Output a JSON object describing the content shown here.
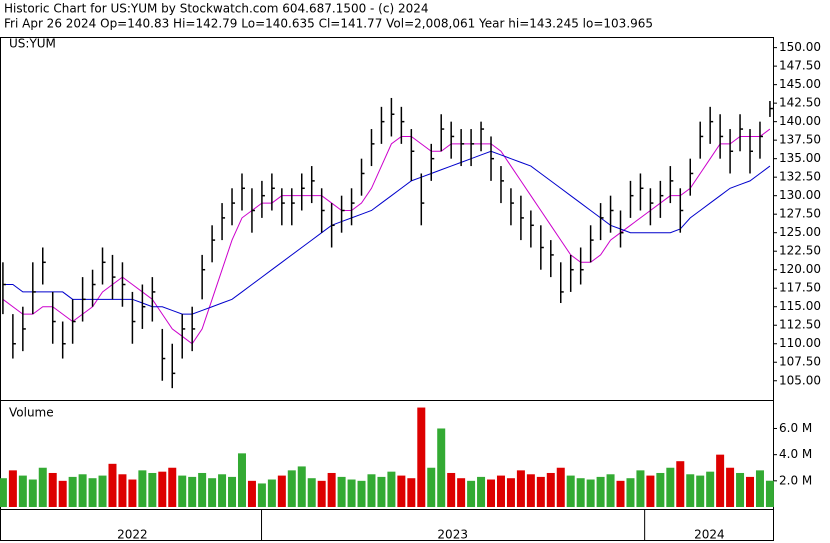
{
  "chart_data": [
    {
      "type": "ohlc",
      "title": "Historic Chart for US:YUM by Stockwatch.com 604.687.1500 - (c) 2024",
      "subtitle": "Fri Apr 26 2024   Op=140.83   Hi=142.79   Lo=140.635   Cl=141.77   Vol=2,008,061   Year hi=143.245   lo=103.965",
      "symbol_label": "US:YUM",
      "bar_color": "#000000",
      "xlim": [
        2022.32,
        2024.335
      ],
      "x": [
        2022.325,
        2022.351,
        2022.377,
        2022.403,
        2022.429,
        2022.455,
        2022.481,
        2022.507,
        2022.533,
        2022.559,
        2022.585,
        2022.611,
        2022.637,
        2022.663,
        2022.689,
        2022.715,
        2022.741,
        2022.767,
        2022.793,
        2022.819,
        2022.845,
        2022.871,
        2022.897,
        2022.923,
        2022.949,
        2022.975,
        2023.001,
        2023.027,
        2023.053,
        2023.079,
        2023.105,
        2023.131,
        2023.157,
        2023.183,
        2023.209,
        2023.235,
        2023.261,
        2023.287,
        2023.313,
        2023.339,
        2023.365,
        2023.391,
        2023.417,
        2023.443,
        2023.469,
        2023.495,
        2023.521,
        2023.547,
        2023.573,
        2023.599,
        2023.625,
        2023.651,
        2023.677,
        2023.703,
        2023.729,
        2023.755,
        2023.781,
        2023.807,
        2023.833,
        2023.859,
        2023.885,
        2023.911,
        2023.937,
        2023.963,
        2023.989,
        2024.015,
        2024.041,
        2024.067,
        2024.093,
        2024.119,
        2024.145,
        2024.171,
        2024.197,
        2024.223,
        2024.249,
        2024.275,
        2024.301,
        2024.327
      ],
      "high": [
        121,
        114,
        115,
        121,
        123,
        117,
        113,
        116,
        119,
        120,
        123,
        122,
        121,
        117,
        118,
        119,
        112,
        110,
        114,
        115,
        122,
        126,
        129,
        131,
        133,
        131,
        132,
        133,
        131,
        131,
        133,
        134,
        131,
        129,
        130,
        131,
        135,
        139,
        142,
        143.2,
        142,
        139,
        133,
        137,
        141,
        140,
        139,
        139,
        140,
        138,
        134,
        131,
        130,
        128,
        126,
        124,
        121,
        122,
        123,
        126,
        129,
        130,
        128,
        132,
        133,
        131,
        132,
        134,
        131,
        135,
        140,
        142,
        141,
        139,
        141,
        139,
        140,
        142.79
      ],
      "low": [
        114,
        108,
        109,
        114,
        118,
        110,
        108,
        110,
        113,
        115,
        118,
        116,
        115,
        110,
        112,
        113,
        105,
        104,
        108,
        109,
        116,
        121,
        124,
        126,
        128,
        125,
        127,
        128,
        126,
        126,
        128,
        129,
        125,
        123,
        125,
        126,
        130,
        134,
        137,
        138,
        137,
        132,
        126,
        132,
        136,
        135,
        134,
        134,
        136,
        132,
        129,
        126,
        124,
        123,
        120,
        119,
        115.5,
        117,
        118,
        121,
        124,
        125,
        123,
        127,
        128,
        126,
        127,
        129,
        125,
        130,
        135,
        137,
        135,
        133,
        136,
        133,
        135,
        140.635
      ],
      "close": [
        118,
        110,
        112,
        117,
        121,
        113,
        110,
        113,
        116,
        118,
        121,
        119,
        118,
        113,
        115,
        117,
        108,
        106,
        112,
        112,
        120,
        124,
        127,
        129,
        131,
        128,
        130,
        131,
        129,
        129,
        131,
        132,
        128,
        126,
        128,
        129,
        133,
        137,
        140,
        141,
        140,
        136,
        129,
        135,
        139,
        138,
        137,
        137,
        139,
        135,
        132,
        129,
        127,
        126,
        123,
        122,
        117,
        120,
        120,
        124,
        127,
        128,
        125,
        130,
        131,
        129,
        130,
        132,
        128,
        133,
        138,
        140,
        138,
        136,
        139,
        136,
        138,
        141.77
      ],
      "series": [
        {
          "color": "#cc00cc",
          "values": [
            116,
            115,
            114,
            114,
            115,
            115,
            114,
            113,
            114,
            115,
            117,
            118,
            119,
            118,
            117,
            116,
            114,
            112,
            111,
            110,
            112,
            116,
            120,
            124,
            127,
            128,
            129,
            129,
            130,
            130,
            130,
            130,
            130,
            129,
            128,
            128,
            129,
            131,
            134,
            137,
            138,
            138,
            137,
            136,
            136,
            137,
            137,
            137,
            137,
            137,
            136,
            134,
            132,
            130,
            128,
            126,
            124,
            122,
            121,
            121,
            122,
            124,
            125,
            126,
            127,
            128,
            129,
            130,
            130,
            131,
            133,
            135,
            137,
            137,
            138,
            138,
            138,
            139
          ]
        },
        {
          "color": "#0000cc",
          "values": [
            118,
            118,
            117,
            117,
            117,
            117,
            117,
            116,
            116,
            116,
            116,
            116,
            116,
            116,
            115.5,
            115,
            115,
            114.5,
            114,
            114,
            114.5,
            115,
            115.5,
            116,
            117,
            118,
            119,
            120,
            121,
            122,
            123,
            124,
            125,
            126,
            126.5,
            127,
            127.5,
            128,
            129,
            130,
            131,
            132,
            132.5,
            133,
            133.5,
            134,
            134.5,
            135,
            135.5,
            136,
            135.5,
            135,
            134.5,
            134,
            133,
            132,
            131,
            130,
            129,
            128,
            127,
            126,
            125.5,
            125,
            125,
            125,
            125,
            125,
            125.5,
            127,
            128,
            129,
            130,
            131,
            131.5,
            132,
            133,
            134
          ]
        }
      ],
      "ylim": [
        102.4,
        151.3
      ],
      "yticks": [
        {
          "value": 105,
          "label": "105.00"
        },
        {
          "value": 107.5,
          "label": "107.50"
        },
        {
          "value": 110,
          "label": "110.00"
        },
        {
          "value": 112.5,
          "label": "112.50"
        },
        {
          "value": 115,
          "label": "115.00"
        },
        {
          "value": 117.5,
          "label": "117.50"
        },
        {
          "value": 120,
          "label": "120.00"
        },
        {
          "value": 122.5,
          "label": "122.50"
        },
        {
          "value": 125,
          "label": "125.00"
        },
        {
          "value": 127.5,
          "label": "127.50"
        },
        {
          "value": 130,
          "label": "130.00"
        },
        {
          "value": 132.5,
          "label": "132.50"
        },
        {
          "value": 135,
          "label": "135.00"
        },
        {
          "value": 137.5,
          "label": "137.50"
        },
        {
          "value": 140,
          "label": "140.00"
        },
        {
          "value": 142.5,
          "label": "142.50"
        },
        {
          "value": 145,
          "label": "145.00"
        },
        {
          "value": 147.5,
          "label": "147.50"
        },
        {
          "value": 150,
          "label": "150.00"
        }
      ]
    },
    {
      "type": "bar",
      "title": "Volume",
      "up_color": "#33aa33",
      "down_color": "#dd0000",
      "values": [
        2.2,
        2.8,
        2.4,
        2.1,
        3.0,
        2.6,
        2.0,
        2.3,
        2.5,
        2.2,
        2.4,
        3.3,
        2.5,
        2.1,
        2.8,
        2.6,
        2.7,
        3.0,
        2.4,
        2.3,
        2.6,
        2.2,
        2.5,
        2.3,
        4.1,
        2.0,
        1.8,
        2.1,
        2.4,
        2.8,
        3.1,
        2.2,
        2.0,
        2.6,
        2.3,
        2.1,
        2.0,
        2.5,
        2.3,
        2.7,
        2.4,
        2.2,
        7.6,
        3.0,
        6.0,
        2.6,
        2.2,
        2.0,
        2.3,
        2.1,
        2.4,
        2.2,
        2.8,
        2.5,
        2.3,
        2.6,
        3.0,
        2.4,
        2.2,
        2.1,
        2.3,
        2.5,
        2.0,
        2.2,
        2.8,
        2.4,
        2.6,
        3.0,
        3.5,
        2.5,
        2.4,
        2.7,
        4.0,
        3.0,
        2.6,
        2.3,
        2.8,
        2.008061
      ],
      "ylim": [
        0,
        8.1
      ],
      "yticks": [
        {
          "value": 2,
          "label": "2.0 M"
        },
        {
          "value": 4,
          "label": "4.0 M"
        },
        {
          "value": 6,
          "label": "6.0 M"
        }
      ],
      "xticks": [
        {
          "value": 2022.663,
          "label": "2022"
        },
        {
          "value": 2023.499,
          "label": "2023"
        },
        {
          "value": 2024.169,
          "label": "2024"
        }
      ],
      "xdividers": [
        2023,
        2024
      ]
    }
  ]
}
